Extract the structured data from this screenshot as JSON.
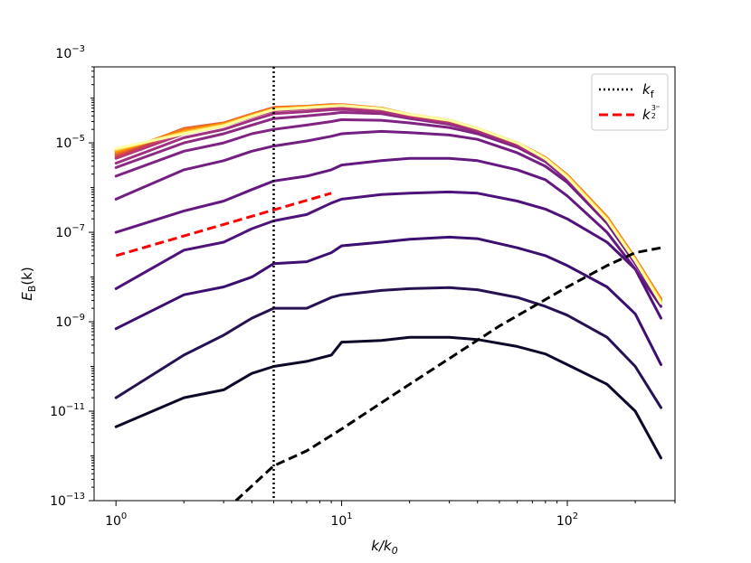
{
  "chart_data": {
    "type": "line",
    "xscale": "log",
    "yscale": "log",
    "xlim": [
      0.8,
      300
    ],
    "ylim": [
      1e-13,
      0.0005
    ],
    "xlabel": {
      "main": "k/k",
      "sub": "0"
    },
    "ylabel": {
      "main": "E",
      "sub": "B",
      "suffix": "(k)"
    },
    "x_ticks": [
      {
        "value": 1,
        "base": "10",
        "exp": "0"
      },
      {
        "value": 10,
        "base": "10",
        "exp": "1"
      },
      {
        "value": 100,
        "base": "10",
        "exp": "2"
      }
    ],
    "y_ticks": [
      {
        "value": 1e-13,
        "base": "10",
        "exp": "−13"
      },
      {
        "value": 1e-11,
        "base": "10",
        "exp": "−11"
      },
      {
        "value": 1e-09,
        "base": "10",
        "exp": "−9"
      },
      {
        "value": 1e-07,
        "base": "10",
        "exp": "−7"
      },
      {
        "value": 1e-05,
        "base": "10",
        "exp": "−5"
      },
      {
        "value": 0.001,
        "base": "10",
        "exp": "−3"
      }
    ],
    "legend": {
      "placement": "top-right",
      "entries": [
        {
          "label": "k",
          "sub": "f",
          "style": "dotted",
          "color": "#000000"
        },
        {
          "label": "k",
          "sup_num": "3",
          "sup_den": "2",
          "style": "dashed",
          "color": "#ff0000"
        }
      ]
    },
    "series": [
      {
        "name": "t1",
        "color": "#0d0829",
        "k": [
          1,
          2,
          3,
          4,
          5,
          7,
          9,
          10,
          15,
          20,
          30,
          40,
          60,
          80,
          100,
          150,
          200,
          260
        ],
        "values": [
          4.5e-12,
          2e-11,
          3e-11,
          7e-11,
          1e-10,
          1.3e-10,
          1.8e-10,
          3.5e-10,
          3.8e-10,
          4.5e-10,
          4.5e-10,
          4e-10,
          2.8e-10,
          1.9e-10,
          1.1e-10,
          4e-11,
          1e-11,
          9e-13
        ]
      },
      {
        "name": "t2",
        "color": "#261253",
        "k": [
          1,
          2,
          3,
          4,
          5,
          7,
          9,
          10,
          15,
          20,
          30,
          40,
          60,
          80,
          100,
          150,
          200,
          260
        ],
        "values": [
          2e-11,
          1.8e-10,
          5e-10,
          1.2e-09,
          2e-09,
          2e-09,
          3.5e-09,
          4e-09,
          5e-09,
          5.5e-09,
          5.8e-09,
          5.2e-09,
          3.5e-09,
          2.2e-09,
          1.4e-09,
          4.5e-10,
          1e-10,
          1.2e-11
        ]
      },
      {
        "name": "t3",
        "color": "#3b0f6f",
        "k": [
          1,
          2,
          3,
          4,
          5,
          7,
          9,
          10,
          15,
          20,
          30,
          40,
          60,
          80,
          100,
          150,
          200,
          260
        ],
        "values": [
          7e-10,
          4e-09,
          6e-09,
          1e-08,
          2e-08,
          2.2e-08,
          3.5e-08,
          5e-08,
          6e-08,
          7e-08,
          7.8e-08,
          7.2e-08,
          4.5e-08,
          3e-08,
          1.8e-08,
          6e-09,
          1.5e-09,
          1.1e-10
        ]
      },
      {
        "name": "t4",
        "color": "#4f127b",
        "k": [
          1,
          2,
          3,
          4,
          5,
          7,
          9,
          10,
          15,
          20,
          30,
          40,
          60,
          80,
          100,
          150,
          200,
          260
        ],
        "values": [
          5.5e-09,
          4e-08,
          6e-08,
          1.2e-07,
          1.8e-07,
          2.5e-07,
          4.5e-07,
          5.5e-07,
          7e-07,
          7.5e-07,
          8e-07,
          7.5e-07,
          5e-07,
          3.3e-07,
          2e-07,
          6e-08,
          1.5e-08,
          1.2e-09
        ]
      },
      {
        "name": "t5",
        "color": "#63197f",
        "k": [
          1,
          2,
          3,
          4,
          5,
          7,
          9,
          10,
          15,
          20,
          30,
          40,
          60,
          80,
          100,
          150,
          200,
          260
        ],
        "values": [
          1e-07,
          3e-07,
          5e-07,
          9e-07,
          1.4e-06,
          1.8e-06,
          2.5e-06,
          3.2e-06,
          4e-06,
          4.5e-06,
          4.5e-06,
          4e-06,
          2.5e-06,
          1.5e-06,
          6.5e-07,
          1e-07,
          1.5e-08,
          2.2e-09
        ]
      },
      {
        "name": "t6",
        "color": "#721f81",
        "k": [
          1,
          2,
          3,
          4,
          5,
          7,
          9,
          10,
          15,
          20,
          30,
          40,
          60,
          80,
          100,
          150,
          200,
          260
        ],
        "values": [
          5.5e-07,
          2.5e-06,
          4e-06,
          6.5e-06,
          8.5e-06,
          1.1e-05,
          1.4e-05,
          1.6e-05,
          1.8e-05,
          1.7e-05,
          1.5e-05,
          1.2e-05,
          6e-06,
          3e-06,
          1.3e-06,
          1.6e-07,
          2e-08,
          2.6e-09
        ]
      },
      {
        "name": "t7",
        "color": "#7f2482",
        "k": [
          1,
          2,
          3,
          4,
          5,
          7,
          9,
          10,
          15,
          20,
          30,
          40,
          60,
          80,
          100,
          150,
          200,
          260
        ],
        "values": [
          1.8e-06,
          6.5e-06,
          1e-05,
          1.6e-05,
          2e-05,
          2.5e-05,
          3e-05,
          3.3e-05,
          3.2e-05,
          2.8e-05,
          2.2e-05,
          1.6e-05,
          8e-06,
          3.8e-06,
          1.5e-06,
          1.8e-07,
          2.2e-08,
          3e-09
        ]
      },
      {
        "name": "t8",
        "color": "#8c2981",
        "k": [
          1,
          2,
          3,
          4,
          5,
          7,
          9,
          10,
          15,
          20,
          30,
          40,
          60,
          80,
          100,
          150,
          200,
          260
        ],
        "values": [
          2.8e-06,
          1e-05,
          1.6e-05,
          2.5e-05,
          3.5e-05,
          4e-05,
          4.5e-05,
          4.8e-05,
          4.5e-05,
          3.5e-05,
          2.6e-05,
          1.8e-05,
          8.5e-06,
          4e-06,
          1.6e-06,
          1.9e-07,
          2.3e-08,
          3e-09
        ]
      },
      {
        "name": "t9",
        "color": "#a1307e",
        "k": [
          1,
          2,
          3,
          4,
          5,
          7,
          9,
          10,
          15,
          20,
          30,
          40,
          60,
          80,
          100,
          150,
          200,
          260
        ],
        "values": [
          3.5e-06,
          1.3e-05,
          2e-05,
          3.2e-05,
          4.5e-05,
          5e-05,
          5.5e-05,
          5.6e-05,
          5e-05,
          3.8e-05,
          2.8e-05,
          1.9e-05,
          9e-06,
          4.2e-06,
          1.7e-06,
          2e-07,
          2.4e-08,
          3e-09
        ]
      },
      {
        "name": "t10",
        "color": "#b73779",
        "k": [
          1,
          2,
          3,
          4,
          5,
          7,
          9,
          10,
          15,
          20,
          30,
          40,
          60,
          80,
          100,
          150,
          200,
          260
        ],
        "values": [
          4.5e-06,
          1.6e-05,
          2.4e-05,
          3.8e-05,
          5.2e-05,
          5.8e-05,
          6.2e-05,
          6.3e-05,
          5.5e-05,
          4e-05,
          3e-05,
          2e-05,
          9.5e-06,
          4.4e-06,
          1.8e-06,
          2.1e-07,
          2.5e-08,
          3.1e-09
        ]
      },
      {
        "name": "t11",
        "color": "#cf4446",
        "k": [
          1,
          2,
          3,
          4,
          5,
          7,
          9,
          10,
          15,
          20,
          30,
          40,
          60,
          80,
          100,
          150,
          200,
          260
        ],
        "values": [
          5e-06,
          1.9e-05,
          2.7e-05,
          4.2e-05,
          5.8e-05,
          6.3e-05,
          6.8e-05,
          6.9e-05,
          5.8e-05,
          4.2e-05,
          3.1e-05,
          2.1e-05,
          1e-05,
          4.6e-06,
          1.9e-06,
          2.2e-07,
          2.6e-08,
          3.2e-09
        ]
      },
      {
        "name": "t12",
        "color": "#e45a31",
        "k": [
          1,
          2,
          3,
          4,
          5,
          7,
          9,
          10,
          15,
          20,
          30,
          40,
          60,
          80,
          100,
          150,
          200,
          260
        ],
        "values": [
          5.5e-06,
          2.1e-05,
          2.8e-05,
          4.4e-05,
          6.2e-05,
          6.6e-05,
          7.2e-05,
          7.2e-05,
          6e-05,
          4.3e-05,
          3.2e-05,
          2.1e-05,
          1e-05,
          4.7e-06,
          1.9e-06,
          2.2e-07,
          2.6e-08,
          3.2e-09
        ]
      },
      {
        "name": "t13",
        "color": "#f3771a",
        "k": [
          1,
          2,
          3,
          4,
          5,
          7,
          9,
          10,
          15,
          20,
          30,
          40,
          60,
          80,
          100,
          150,
          200,
          260
        ],
        "values": [
          6e-06,
          2e-05,
          2.7e-05,
          4.3e-05,
          6e-05,
          6.5e-05,
          7e-05,
          7e-05,
          5.9e-05,
          4.3e-05,
          3.2e-05,
          2.1e-05,
          1e-05,
          4.7e-06,
          1.9e-06,
          2.2e-07,
          2.6e-08,
          3.1e-09
        ]
      },
      {
        "name": "t14",
        "color": "#fb9b06",
        "k": [
          1,
          2,
          3,
          4,
          5,
          7,
          9,
          10,
          15,
          20,
          30,
          40,
          60,
          80,
          100,
          150,
          200,
          260
        ],
        "values": [
          6.5e-06,
          1.8e-05,
          2.6e-05,
          4.1e-05,
          5.8e-05,
          6.4e-05,
          6.9e-05,
          7e-05,
          5.9e-05,
          4.3e-05,
          3.2e-05,
          2.1e-05,
          1e-05,
          4.6e-06,
          1.8e-06,
          2.1e-07,
          2.5e-08,
          3e-09
        ]
      },
      {
        "name": "t15",
        "color": "#f7d13d",
        "k": [
          1,
          2,
          3,
          4,
          5,
          7,
          9,
          10,
          15,
          20,
          30,
          40,
          60,
          80,
          100,
          150,
          200,
          260
        ],
        "values": [
          7e-06,
          1.7e-05,
          2.5e-05,
          4e-05,
          5.6e-05,
          6.2e-05,
          6.7e-05,
          6.9e-05,
          5.8e-05,
          4.3e-05,
          3.2e-05,
          2.1e-05,
          1e-05,
          4.5e-06,
          1.8e-06,
          2e-07,
          2.4e-08,
          2.8e-09
        ]
      },
      {
        "name": "t16",
        "color": "#fcffa4",
        "k": [
          1,
          2,
          3,
          4,
          5,
          7,
          9,
          10,
          15,
          20,
          30,
          40,
          60,
          80,
          100,
          150,
          200,
          260
        ],
        "values": [
          7.5e-06,
          1.6e-05,
          2.4e-05,
          3.9e-05,
          5.5e-05,
          6.1e-05,
          6.6e-05,
          6.8e-05,
          5.8e-05,
          4.3e-05,
          3.2e-05,
          2.1e-05,
          1e-05,
          4.4e-06,
          1.7e-06,
          1.9e-07,
          2.3e-08,
          2.6e-09
        ]
      }
    ],
    "reference_lines": [
      {
        "name": "black-dashed-line",
        "color": "#000000",
        "style": "dashed",
        "k": [
          3.4,
          5,
          7,
          10,
          20,
          50,
          100,
          150,
          200,
          260
        ],
        "values": [
          1e-13,
          6e-13,
          1.3e-12,
          4e-12,
          4e-11,
          8e-10,
          6e-09,
          1.8e-08,
          3.5e-08,
          4.5e-08
        ]
      },
      {
        "name": "slope-three-halves-line",
        "color": "#ff0000",
        "style": "dashed",
        "k": [
          1,
          9
        ],
        "values": [
          3e-08,
          7.5e-07
        ]
      },
      {
        "name": "forcing-scale-line",
        "color": "#000000",
        "style": "dotted",
        "x": 5
      }
    ]
  }
}
